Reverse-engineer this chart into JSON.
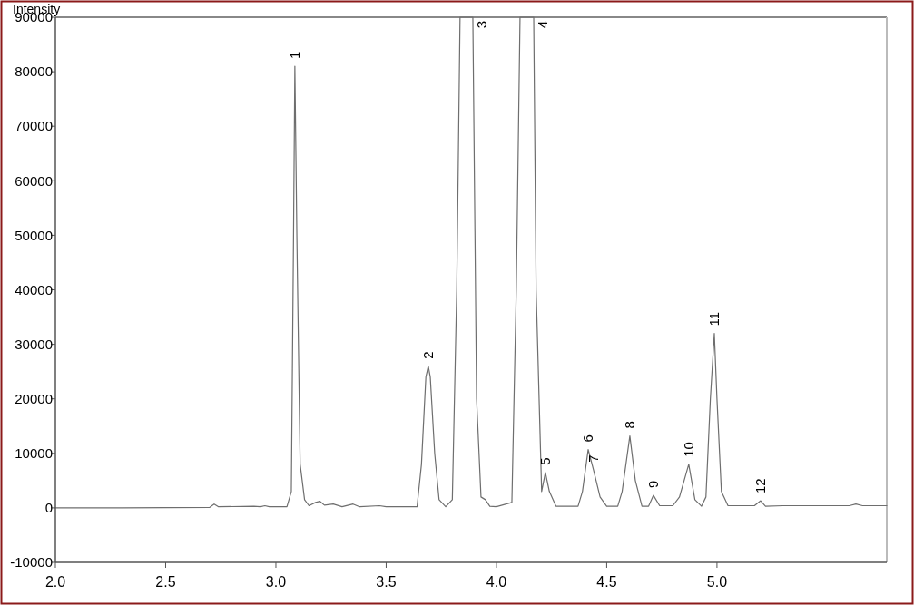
{
  "chart_data": {
    "type": "line",
    "ylabel": "Intensity",
    "xlim": [
      2.0,
      5.77
    ],
    "xticks": [
      {
        "value": 2.0,
        "label": "2.0"
      },
      2.5,
      {
        "value": 3.0,
        "label": "3.0"
      },
      3.5,
      {
        "value": 4.0,
        "label": "4.0"
      },
      4.5,
      {
        "value": 5.0,
        "label": "5.0"
      }
    ],
    "ylim": [
      -10000,
      90000
    ],
    "yticks": [
      -10000,
      0,
      10000,
      20000,
      30000,
      40000,
      50000,
      60000,
      70000,
      80000,
      90000
    ],
    "grid": false,
    "marker": "none",
    "line_style": "solid",
    "series": [
      {
        "color": "#6e6e6e",
        "x": [
          2.0,
          2.3,
          2.7,
          2.72,
          2.74,
          2.9,
          2.93,
          2.95,
          2.97,
          3.05,
          3.07,
          3.08,
          3.086,
          3.095,
          3.11,
          3.13,
          3.15,
          3.18,
          3.2,
          3.22,
          3.26,
          3.3,
          3.35,
          3.38,
          3.47,
          3.5,
          3.64,
          3.66,
          3.68,
          3.691,
          3.7,
          3.72,
          3.74,
          3.77,
          3.8,
          3.82,
          3.835,
          3.893,
          3.91,
          3.93,
          3.95,
          3.97,
          4.0,
          4.07,
          4.09,
          4.107,
          4.169,
          4.18,
          4.205,
          4.222,
          4.24,
          4.27,
          4.37,
          4.39,
          4.416,
          4.44,
          4.47,
          4.5,
          4.55,
          4.57,
          4.605,
          4.63,
          4.66,
          4.69,
          4.712,
          4.74,
          4.8,
          4.83,
          4.872,
          4.9,
          4.93,
          4.95,
          4.97,
          4.988,
          5.0,
          5.02,
          5.05,
          5.17,
          5.198,
          5.22,
          5.3,
          5.6,
          5.63,
          5.66,
          5.77
        ],
        "values": [
          0,
          0,
          100,
          700,
          200,
          300,
          200,
          400,
          200,
          200,
          3000,
          50000,
          81000,
          50000,
          8000,
          1500,
          400,
          1000,
          1200,
          500,
          700,
          200,
          700,
          200,
          400,
          200,
          200,
          8000,
          24000,
          26000,
          24000,
          10000,
          1500,
          200,
          1500,
          40000,
          90000,
          90000,
          20000,
          2000,
          1500,
          300,
          200,
          1000,
          40000,
          90000,
          90000,
          40000,
          3000,
          6500,
          3000,
          300,
          300,
          3000,
          10700,
          7000,
          2000,
          300,
          300,
          3000,
          13200,
          5000,
          300,
          300,
          2300,
          400,
          400,
          2000,
          8000,
          1500,
          300,
          2000,
          20000,
          32000,
          20000,
          3000,
          400,
          400,
          1300,
          300,
          400,
          400,
          700,
          400,
          400
        ]
      }
    ],
    "annotations": [
      {
        "text": "1",
        "x": 3.086,
        "y": 81000
      },
      {
        "text": "2",
        "x": 3.691,
        "y": 26000
      },
      {
        "text": "3",
        "x": 3.893,
        "y": 90000
      },
      {
        "text": "4",
        "x": 4.169,
        "y": 90000
      },
      {
        "text": "5",
        "x": 4.222,
        "y": 6500
      },
      {
        "text": "6",
        "x": 4.416,
        "y": 10700
      },
      {
        "text": "7",
        "x": 4.44,
        "y": 7000
      },
      {
        "text": "8",
        "x": 4.605,
        "y": 13200
      },
      {
        "text": "9",
        "x": 4.712,
        "y": 2300
      },
      {
        "text": "10",
        "x": 4.872,
        "y": 8000
      },
      {
        "text": "11",
        "x": 4.988,
        "y": 32000
      },
      {
        "text": "12",
        "x": 5.198,
        "y": 1300
      }
    ]
  }
}
